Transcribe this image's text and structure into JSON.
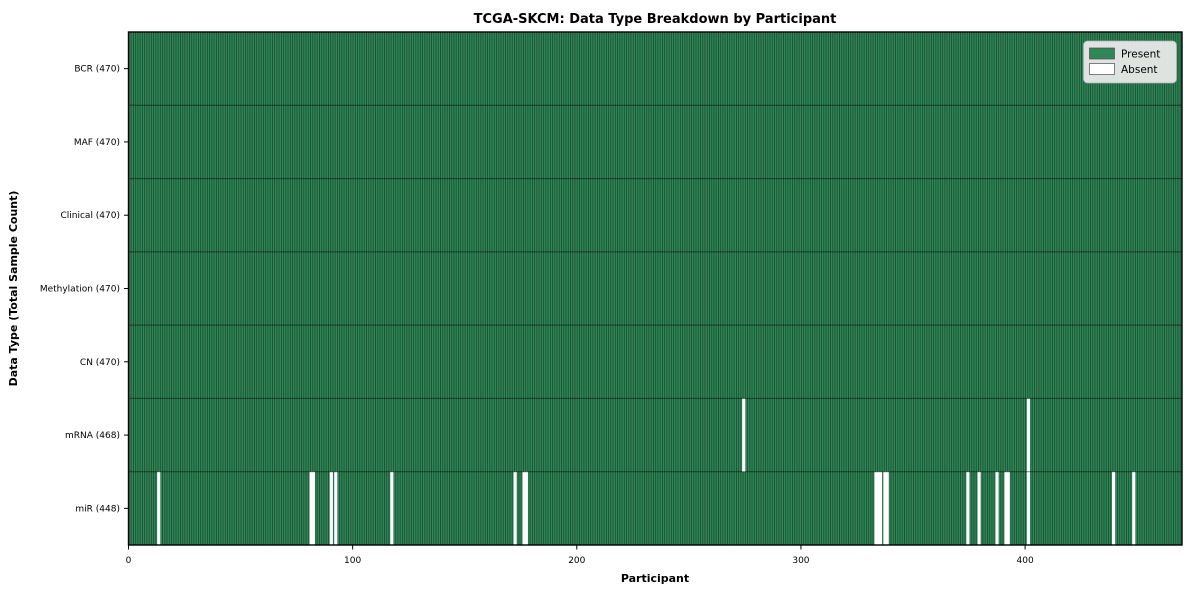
{
  "chart_data": {
    "type": "heatmap",
    "title": "TCGA-SKCM: Data Type Breakdown by Participant",
    "xlabel": "Participant",
    "ylabel": "Data Type (Total Sample Count)",
    "x_ticks": [
      0,
      100,
      200,
      300,
      400
    ],
    "xlim": [
      0,
      470
    ],
    "n_participants": 470,
    "grid": true,
    "legend_position": "upper right",
    "rows": [
      {
        "label": "BCR (470)",
        "data_type": "BCR",
        "present_count": 470,
        "absent": []
      },
      {
        "label": "MAF (470)",
        "data_type": "MAF",
        "present_count": 470,
        "absent": []
      },
      {
        "label": "Clinical (470)",
        "data_type": "Clinical",
        "present_count": 470,
        "absent": []
      },
      {
        "label": "Methylation (470)",
        "data_type": "Methylation",
        "present_count": 470,
        "absent": []
      },
      {
        "label": "CN (470)",
        "data_type": "CN",
        "present_count": 470,
        "absent": []
      },
      {
        "label": "mRNA (468)",
        "data_type": "mRNA",
        "present_count": 468,
        "absent": [
          274,
          401
        ]
      },
      {
        "label": "miR (448)",
        "data_type": "miR",
        "present_count": 448,
        "absent": [
          13,
          81,
          82,
          90,
          92,
          117,
          172,
          176,
          177,
          333,
          334,
          335,
          337,
          338,
          374,
          379,
          387,
          391,
          392,
          401,
          439,
          448
        ]
      }
    ],
    "legend": [
      {
        "label": "Present",
        "color": "#2f8757"
      },
      {
        "label": "Absent",
        "color": "#ffffff"
      }
    ],
    "colors": {
      "present": "#2f8757",
      "absent": "#ffffff",
      "grid_line": "rgba(0,0,0,0.45)",
      "row_separator": "rgba(0,0,0,0.5)",
      "border": "#000000"
    }
  }
}
